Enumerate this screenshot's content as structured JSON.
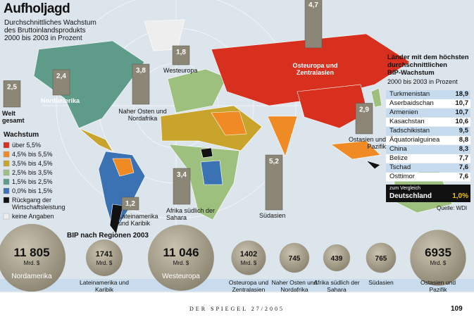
{
  "header": {
    "title": "Aufholjagd",
    "subtitle": [
      "Durchschnittliches Wachstum",
      "des Bruttoinlandsprodukts",
      "2000 bis 2003 in Prozent"
    ]
  },
  "chart_data": [
    {
      "type": "bar",
      "categories": [
        "Welt gesamt",
        "Nordamerika",
        "Westeuropa",
        "Naher Osten und Nordafrika",
        "Osteuropa und Zentralasien",
        "Lateinamerika und Karibik",
        "Afrika südlich der Sahara",
        "Südasien",
        "Ostasien und Pazifik"
      ],
      "values": [
        2.5,
        2.4,
        1.8,
        3.8,
        4.7,
        1.2,
        3.4,
        5.2,
        2.9
      ],
      "value_labels": [
        "2,5",
        "2,4",
        "1,8",
        "3,8",
        "4,7",
        "1,2",
        "3,4",
        "5,2",
        "2,9"
      ],
      "color": "#8b8676"
    },
    {
      "type": "bubble",
      "title": "BIP nach Regionen 2003",
      "unit": "Mrd. $",
      "categories": [
        "Nordamerika",
        "Lateinamerika und Karibik",
        "Westeuropa",
        "Osteuropa und Zentralasien",
        "Naher Osten und Nordafrika",
        "Afrika südlich der Sahara",
        "Südasien",
        "Ostasien und Pazifik"
      ],
      "values": [
        11805,
        1741,
        11046,
        1402,
        745,
        439,
        765,
        6935
      ],
      "value_labels": [
        "11 805",
        "1741",
        "11 046",
        "1402",
        "745",
        "439",
        "765",
        "6935"
      ],
      "color": "#a39c88"
    }
  ],
  "legend": {
    "title": "Wachstum",
    "items": [
      {
        "label": "über 5,5%",
        "color": "#d7301f"
      },
      {
        "label": "4,5% bis 5,5%",
        "color": "#ef8a25"
      },
      {
        "label": "3,5% bis 4,5%",
        "color": "#c9a42c"
      },
      {
        "label": "2,5% bis 3,5%",
        "color": "#9dc07f"
      },
      {
        "label": "1,5% bis 2,5%",
        "color": "#5e9c89"
      },
      {
        "label": "0,0% bis 1,5%",
        "color": "#3b72b3"
      },
      {
        "label": "Rückgang der Wirtschaftsleistung",
        "color": "#111111"
      },
      {
        "label": "keine Angaben",
        "color": "#eeeeee"
      }
    ]
  },
  "table": {
    "title": [
      "Länder mit dem höchsten",
      "durchschnittlichen",
      "BIP-Wachstum"
    ],
    "subtitle": "2000 bis 2003 in Prozent",
    "rows": [
      [
        "Turkmenistan",
        "18,9"
      ],
      [
        "Aserbaidschan",
        "10,7"
      ],
      [
        "Armenien",
        "10,7"
      ],
      [
        "Kasachstan",
        "10,6"
      ],
      [
        "Tadschikistan",
        "9,5"
      ],
      [
        "Äquatorialguinea",
        "8,8"
      ],
      [
        "China",
        "8,3"
      ],
      [
        "Belize",
        "7,7"
      ],
      [
        "Tschad",
        "7,6"
      ],
      [
        "Osttimor",
        "7,6"
      ]
    ],
    "comparison": {
      "note": "zum Vergleich",
      "country": "Deutschland",
      "value": "1,0%"
    }
  },
  "source": "Quelle: WDI",
  "footer": {
    "publication": "DER SPIEGEL 27/2005",
    "page": "109"
  }
}
